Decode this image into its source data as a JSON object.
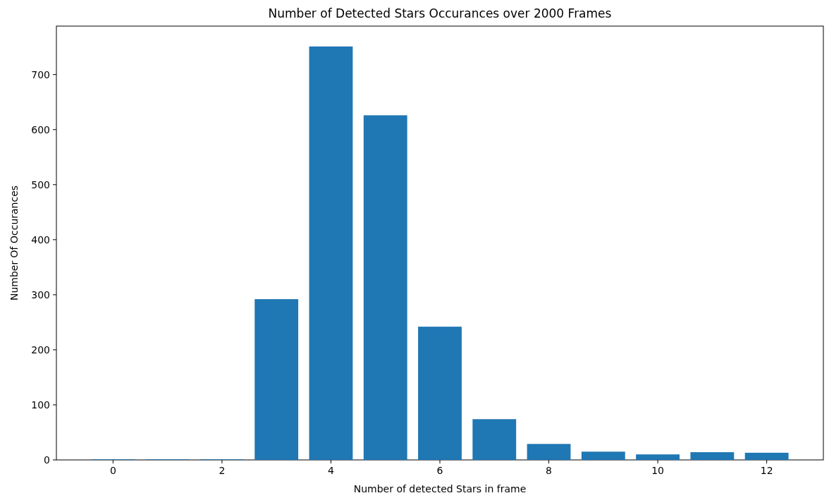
{
  "chart_data": {
    "type": "bar",
    "title": "Number of Detected Stars Occurances over 2000 Frames",
    "xlabel": "Number of detected Stars in frame",
    "ylabel": "Number Of Occurances",
    "x": [
      0,
      1,
      2,
      3,
      4,
      5,
      6,
      7,
      8,
      9,
      10,
      11,
      12
    ],
    "values": [
      1,
      1,
      1,
      292,
      751,
      626,
      242,
      74,
      29,
      15,
      10,
      14,
      13
    ],
    "color": "#1f77b4",
    "xlim": [
      -1.04,
      13.04
    ],
    "xticks": [
      0,
      2,
      4,
      6,
      8,
      10,
      12
    ],
    "ylim": [
      0,
      788
    ],
    "yticks": [
      0,
      100,
      200,
      300,
      400,
      500,
      600,
      700
    ],
    "grid": false
  }
}
